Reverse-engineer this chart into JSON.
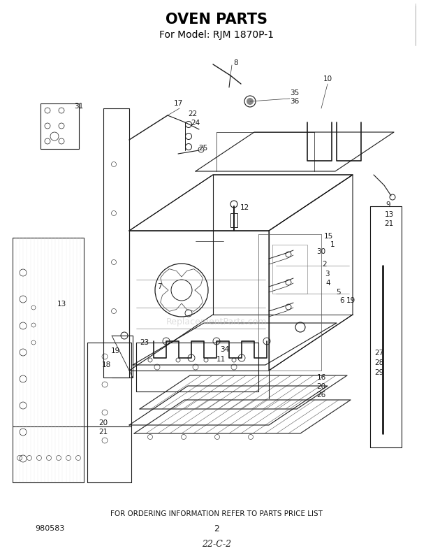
{
  "title": "OVEN PARTS",
  "subtitle": "For Model: RJM 1870P-1",
  "footer_text": "FOR ORDERING INFORMATION REFER TO PARTS PRICE LIST",
  "page_number": "2",
  "doc_number": "980583",
  "doc_code": "22-C-2",
  "bg_color": "#ffffff",
  "line_color": "#1a1a1a",
  "label_fontsize": 7.5,
  "title_fontsize": 15,
  "subtitle_fontsize": 10
}
